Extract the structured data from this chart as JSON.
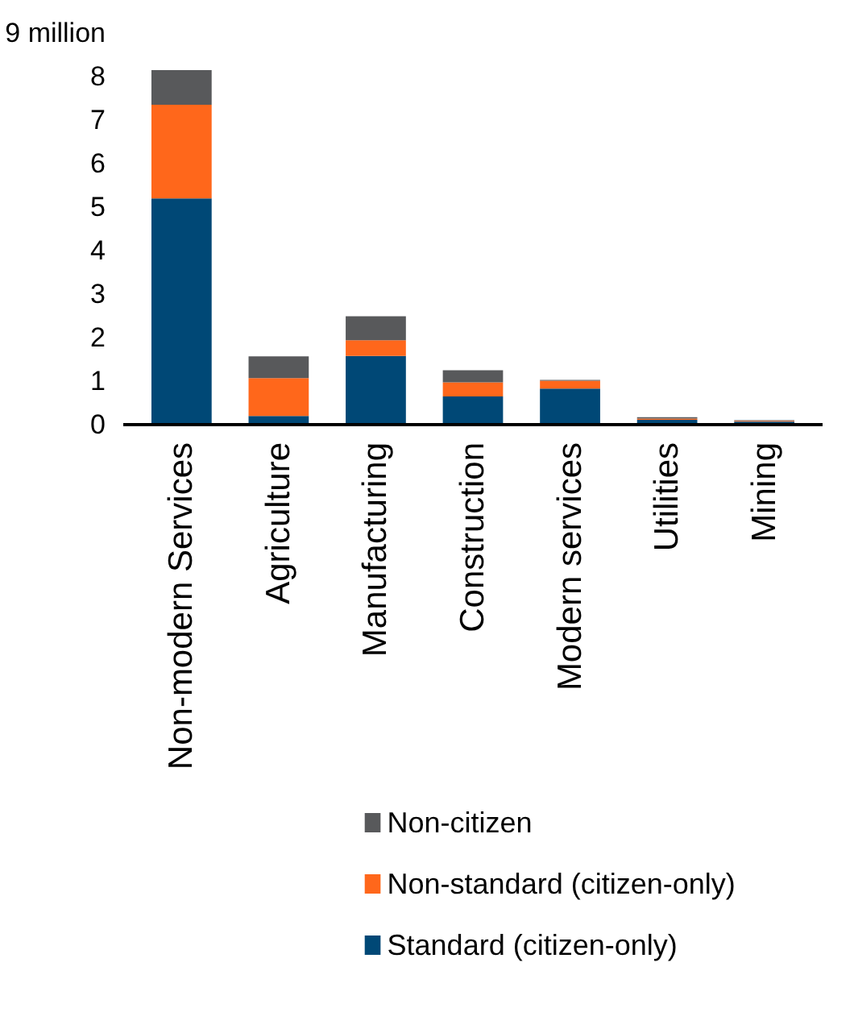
{
  "chart_data": {
    "type": "bar",
    "stacked": true,
    "categories": [
      "Non-modern Services",
      "Agriculture",
      "Manufacturing",
      "Construction",
      "Modern services",
      "Utilities",
      "Mining"
    ],
    "series": [
      {
        "name": "Standard (citizen-only)",
        "color": "#004876",
        "values": [
          5.2,
          0.2,
          1.58,
          0.65,
          0.83,
          0.11,
          0.07
        ]
      },
      {
        "name": "Non-standard (citizen-only)",
        "color": "#ff671b",
        "values": [
          2.15,
          0.87,
          0.36,
          0.32,
          0.18,
          0.03,
          0.02
        ]
      },
      {
        "name": "Non-citizen",
        "color": "#58595b",
        "values": [
          0.8,
          0.5,
          0.55,
          0.28,
          0.02,
          0.03,
          0.01
        ]
      }
    ],
    "ylim": [
      0,
      9
    ],
    "yticks": [
      0,
      1,
      2,
      3,
      4,
      5,
      6,
      7,
      8,
      {
        "value": 9,
        "label": "9 million"
      }
    ],
    "grid": false,
    "legend": "bottom"
  }
}
